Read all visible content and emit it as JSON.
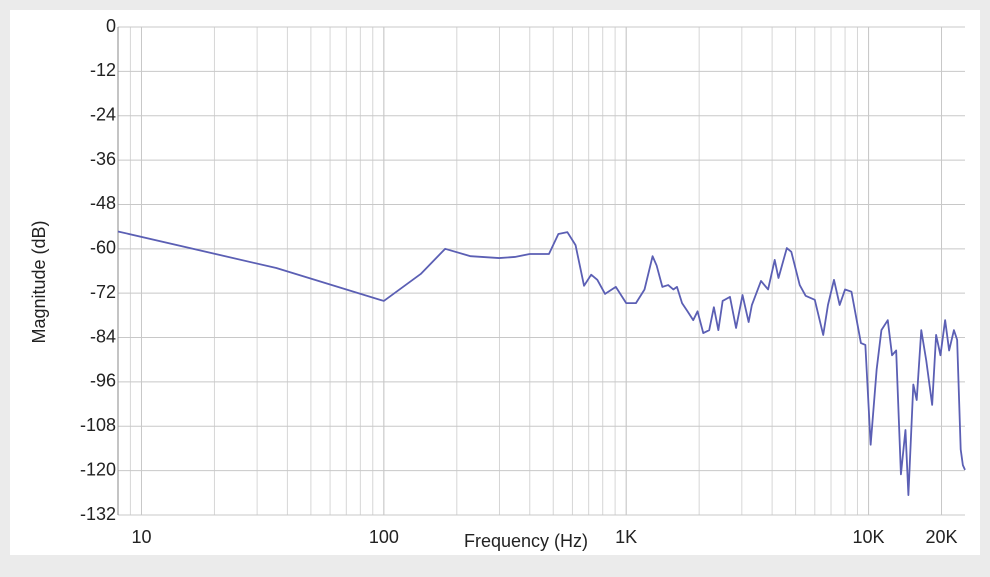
{
  "chart_data": {
    "type": "line",
    "x_label": "Frequency (Hz)",
    "y_label": "Magnitude (dB)",
    "xscale": "log",
    "grid": true,
    "minor_grid": true,
    "xlim": [
      8,
      25000
    ],
    "ylim": [
      -132,
      0
    ],
    "xticks": [
      10,
      100,
      {
        "value": 1000,
        "label": "1K"
      },
      {
        "value": 10000,
        "label": "10K"
      },
      {
        "value": 20000,
        "label": "20K"
      }
    ],
    "yticks": [
      0,
      -12,
      -24,
      -36,
      -48,
      -60,
      -72,
      -84,
      -96,
      -108,
      -120,
      -132
    ],
    "series": [
      {
        "color": "#5b5fb4",
        "x": [
          8,
          36,
          100,
          142,
          179,
          228,
          299,
          347,
          400,
          480,
          525,
          572,
          618,
          670,
          717,
          760,
          818,
          906,
          1000,
          1097,
          1190,
          1285,
          1335,
          1410,
          1490,
          1565,
          1620,
          1700,
          1790,
          1890,
          1970,
          2080,
          2200,
          2300,
          2400,
          2500,
          2680,
          2840,
          3020,
          3200,
          3300,
          3600,
          3850,
          4100,
          4250,
          4600,
          4800,
          5200,
          5500,
          6000,
          6500,
          6800,
          7200,
          7600,
          8000,
          8500,
          9300,
          9700,
          10200,
          10800,
          11300,
          12000,
          12500,
          13000,
          13600,
          14200,
          14600,
          15300,
          15800,
          16500,
          17300,
          18300,
          19000,
          19800,
          20700,
          21500,
          22500,
          23200,
          24000,
          24500,
          25000
        ],
        "values": [
          -55.3,
          -65.2,
          -74.1,
          -66.8,
          -60,
          -62,
          -62.5,
          -62.2,
          -61.4,
          -61.4,
          -56,
          -55.5,
          -59,
          -70,
          -67,
          -68.4,
          -72.2,
          -70.3,
          -74.7,
          -74.7,
          -71,
          -62,
          -64.5,
          -70.3,
          -69.8,
          -71,
          -70.3,
          -74.7,
          -76.9,
          -79.3,
          -76.9,
          -82.8,
          -82,
          -75.8,
          -82,
          -74.1,
          -73,
          -81.4,
          -72.5,
          -79.8,
          -75.2,
          -68.7,
          -71,
          -63,
          -67.9,
          -59.8,
          -60.8,
          -69.8,
          -72.7,
          -73.8,
          -83.3,
          -75.2,
          -68.4,
          -75.2,
          -71,
          -71.6,
          -85.5,
          -86,
          -113,
          -92.6,
          -82,
          -79.3,
          -88.8,
          -87.5,
          -121,
          -109,
          -126.6,
          -96.7,
          -100.9,
          -82,
          -90.2,
          -102.2,
          -83.3,
          -88.8,
          -79.3,
          -87.5,
          -82,
          -84.6,
          -114.3,
          -118.5,
          -119.8
        ]
      }
    ]
  }
}
